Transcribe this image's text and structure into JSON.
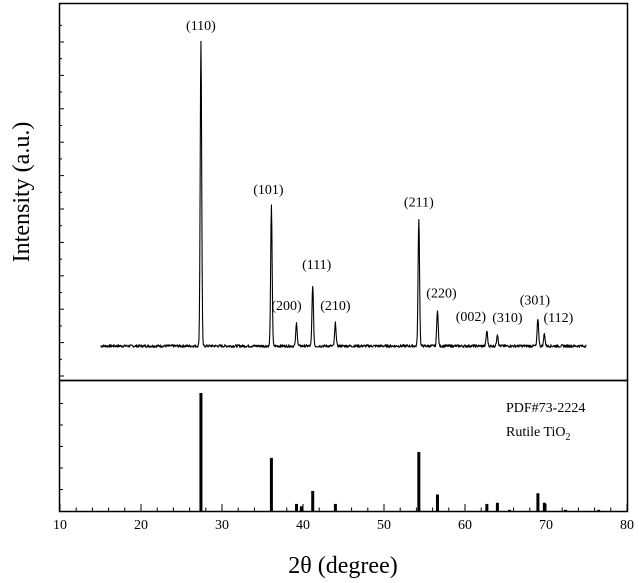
{
  "chart_data": {
    "type": "line",
    "xlabel": "2θ (degree)",
    "ylabel": "Intensity (a.u.)",
    "xlim": [
      10,
      80
    ],
    "x_ticks": [
      10,
      20,
      30,
      40,
      50,
      60,
      70,
      80
    ],
    "grid": false,
    "panels": [
      {
        "id": "xrd-pattern",
        "ylim": [
          0,
          100
        ],
        "baseline": 0,
        "x_range": [
          15,
          75
        ],
        "peaks": [
          {
            "x": 27.4,
            "y": 100,
            "label": "(110)"
          },
          {
            "x": 36.1,
            "y": 46,
            "label": "(101)"
          },
          {
            "x": 39.2,
            "y": 7.5,
            "label": "(200)"
          },
          {
            "x": 41.2,
            "y": 20,
            "label": "(111)"
          },
          {
            "x": 44.0,
            "y": 7.5,
            "label": "(210)"
          },
          {
            "x": 54.3,
            "y": 42,
            "label": "(211)"
          },
          {
            "x": 56.6,
            "y": 12,
            "label": "(220)"
          },
          {
            "x": 62.7,
            "y": 5,
            "label": "(002)"
          },
          {
            "x": 64.0,
            "y": 4,
            "label": "(310)"
          },
          {
            "x": 69.0,
            "y": 9,
            "label": "(301)"
          },
          {
            "x": 69.8,
            "y": 4,
            "label": "(112)"
          }
        ]
      },
      {
        "id": "reference-pattern",
        "ylim": [
          0,
          100
        ],
        "legend": {
          "line1": "PDF#73-2224",
          "line2_prefix": "Rutile TiO",
          "line2_subscript": "2"
        },
        "sticks": [
          {
            "x": 27.4,
            "y": 100
          },
          {
            "x": 36.1,
            "y": 45
          },
          {
            "x": 39.2,
            "y": 6
          },
          {
            "x": 39.8,
            "y": 4
          },
          {
            "x": 41.2,
            "y": 17
          },
          {
            "x": 44.0,
            "y": 6
          },
          {
            "x": 54.3,
            "y": 50
          },
          {
            "x": 56.6,
            "y": 14
          },
          {
            "x": 62.7,
            "y": 6
          },
          {
            "x": 64.0,
            "y": 7
          },
          {
            "x": 65.5,
            "y": 1
          },
          {
            "x": 69.0,
            "y": 15
          },
          {
            "x": 69.8,
            "y": 7
          },
          {
            "x": 72.4,
            "y": 1
          },
          {
            "x": 76.5,
            "y": 1
          }
        ]
      }
    ]
  }
}
